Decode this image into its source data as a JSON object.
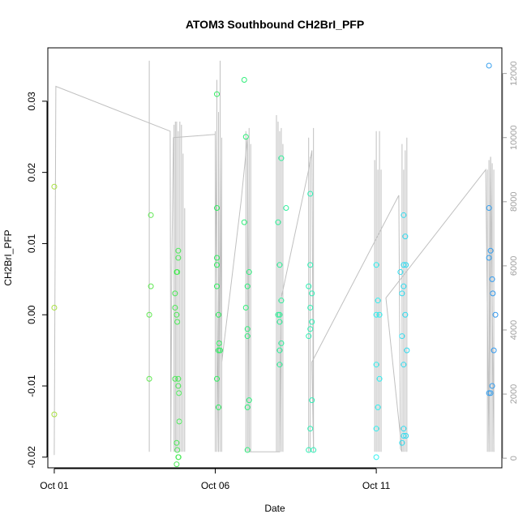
{
  "chart_data": {
    "type": "scatter",
    "title": "ATOM3 Southbound CH2BrI_PFP",
    "xlabel": "Date",
    "ylabel": "CH2BrI_PFP",
    "x_ticks": [
      {
        "label": "Oct 01",
        "day": 1
      },
      {
        "label": "Oct 06",
        "day": 6
      },
      {
        "label": "Oct 11",
        "day": 11
      }
    ],
    "xlim_days": [
      0.8,
      14.9
    ],
    "ylim": [
      -0.0215,
      0.0375
    ],
    "y_ticks": [
      -0.02,
      -0.01,
      0.0,
      0.01,
      0.02,
      0.03
    ],
    "y_tick_labels": [
      "-0.02",
      "-0.01",
      "0.00",
      "0.01",
      "0.02",
      "0.03"
    ],
    "y2_ticks": [
      0,
      2000,
      4000,
      6000,
      8000,
      10000,
      12000
    ],
    "y2_tick_labels": [
      "0",
      "2000",
      "4000",
      "6000",
      "8000",
      "10000",
      "12000"
    ],
    "y2lim": [
      -300,
      12800
    ],
    "colors": {
      "start": "#a8e040",
      "mid": "#30ee60",
      "cyan": "#30f0f0",
      "end": "#3399ee",
      "altitude_line": "#c0c0c0"
    },
    "points": [
      [
        1.0,
        0.018
      ],
      [
        1.0,
        0.001
      ],
      [
        1.0,
        -0.014
      ],
      [
        4.0,
        0.014
      ],
      [
        4.0,
        0.004
      ],
      [
        3.95,
        0.0
      ],
      [
        3.95,
        -0.009
      ],
      [
        4.75,
        0.003
      ],
      [
        4.75,
        0.001
      ],
      [
        4.8,
        0.006
      ],
      [
        4.82,
        0.006
      ],
      [
        4.85,
        0.009
      ],
      [
        4.85,
        0.008
      ],
      [
        4.8,
        0.0
      ],
      [
        4.82,
        -0.001
      ],
      [
        4.75,
        -0.009
      ],
      [
        4.85,
        -0.009
      ],
      [
        4.85,
        -0.01
      ],
      [
        4.87,
        -0.011
      ],
      [
        4.88,
        -0.015
      ],
      [
        4.8,
        -0.018
      ],
      [
        4.82,
        -0.019
      ],
      [
        4.85,
        -0.02
      ],
      [
        4.86,
        -0.02
      ],
      [
        4.8,
        -0.021
      ],
      [
        6.05,
        0.031
      ],
      [
        6.05,
        0.015
      ],
      [
        6.05,
        0.008
      ],
      [
        6.05,
        0.007
      ],
      [
        6.05,
        0.004
      ],
      [
        6.1,
        0.0
      ],
      [
        6.12,
        -0.004
      ],
      [
        6.1,
        -0.005
      ],
      [
        6.15,
        -0.005
      ],
      [
        6.05,
        -0.009
      ],
      [
        6.1,
        -0.013
      ],
      [
        6.9,
        0.033
      ],
      [
        6.95,
        0.025
      ],
      [
        6.9,
        0.013
      ],
      [
        7.05,
        0.006
      ],
      [
        7.0,
        0.004
      ],
      [
        6.95,
        0.001
      ],
      [
        7.0,
        -0.002
      ],
      [
        7.0,
        -0.003
      ],
      [
        7.05,
        -0.012
      ],
      [
        7.0,
        -0.013
      ],
      [
        7.0,
        -0.019
      ],
      [
        8.05,
        0.022
      ],
      [
        8.2,
        0.015
      ],
      [
        7.95,
        0.013
      ],
      [
        8.0,
        0.007
      ],
      [
        8.05,
        0.002
      ],
      [
        8.0,
        0.0
      ],
      [
        7.95,
        0.0
      ],
      [
        8.0,
        -0.001
      ],
      [
        8.05,
        -0.004
      ],
      [
        8.0,
        -0.005
      ],
      [
        8.0,
        -0.007
      ],
      [
        8.95,
        0.017
      ],
      [
        8.95,
        0.007
      ],
      [
        8.9,
        0.004
      ],
      [
        9.0,
        0.003
      ],
      [
        8.95,
        0.001
      ],
      [
        9.0,
        -0.001
      ],
      [
        8.95,
        -0.002
      ],
      [
        8.9,
        -0.003
      ],
      [
        9.0,
        -0.012
      ],
      [
        8.95,
        -0.016
      ],
      [
        8.9,
        -0.019
      ],
      [
        9.05,
        -0.019
      ],
      [
        11.0,
        0.007
      ],
      [
        11.05,
        0.002
      ],
      [
        11.0,
        0.0
      ],
      [
        11.1,
        0.0
      ],
      [
        11.0,
        -0.007
      ],
      [
        11.1,
        -0.009
      ],
      [
        11.05,
        -0.013
      ],
      [
        11.0,
        -0.016
      ],
      [
        11.0,
        -0.02
      ],
      [
        11.85,
        0.014
      ],
      [
        11.9,
        0.011
      ],
      [
        11.85,
        0.007
      ],
      [
        11.92,
        0.007
      ],
      [
        11.75,
        0.006
      ],
      [
        11.85,
        0.004
      ],
      [
        11.8,
        0.003
      ],
      [
        11.9,
        0.0
      ],
      [
        11.8,
        -0.003
      ],
      [
        11.95,
        -0.005
      ],
      [
        11.85,
        -0.007
      ],
      [
        11.85,
        -0.016
      ],
      [
        11.85,
        -0.017
      ],
      [
        11.92,
        -0.017
      ],
      [
        11.8,
        -0.018
      ],
      [
        14.5,
        0.035
      ],
      [
        14.5,
        0.015
      ],
      [
        14.55,
        0.009
      ],
      [
        14.5,
        0.008
      ],
      [
        14.6,
        0.005
      ],
      [
        14.62,
        0.003
      ],
      [
        14.7,
        0.0
      ],
      [
        14.65,
        -0.005
      ],
      [
        14.6,
        -0.01
      ],
      [
        14.55,
        -0.011
      ],
      [
        14.5,
        -0.011
      ]
    ],
    "altitude_path": [
      [
        1.0,
        100
      ],
      [
        1.05,
        11600
      ],
      [
        4.6,
        10200
      ],
      [
        4.62,
        200
      ],
      [
        4.65,
        6000
      ],
      [
        4.7,
        10000
      ],
      [
        6.0,
        10100
      ],
      [
        6.1,
        200
      ],
      [
        6.15,
        9400
      ],
      [
        6.2,
        3000
      ],
      [
        6.8,
        8000
      ],
      [
        7.0,
        10000
      ],
      [
        7.05,
        200
      ],
      [
        8.0,
        200
      ],
      [
        8.05,
        5000
      ],
      [
        8.9,
        9000
      ],
      [
        9.0,
        9600
      ],
      [
        9.05,
        200
      ],
      [
        9.0,
        3000
      ],
      [
        11.7,
        8200
      ],
      [
        11.75,
        300
      ],
      [
        11.8,
        200
      ],
      [
        11.3,
        5000
      ],
      [
        14.4,
        9000
      ],
      [
        14.5,
        200
      ],
      [
        14.55,
        9400
      ],
      [
        14.65,
        200
      ]
    ],
    "spikes": [
      [
        3.95,
        200,
        12400
      ],
      [
        4.72,
        200,
        10400
      ],
      [
        4.76,
        200,
        10500
      ],
      [
        4.8,
        200,
        10500
      ],
      [
        4.85,
        200,
        10200
      ],
      [
        4.9,
        200,
        10500
      ],
      [
        4.95,
        200,
        10400
      ],
      [
        5.0,
        200,
        9500
      ],
      [
        5.05,
        200,
        7800
      ],
      [
        6.0,
        200,
        10200
      ],
      [
        6.05,
        200,
        11800
      ],
      [
        6.1,
        200,
        10800
      ],
      [
        6.15,
        200,
        12400
      ],
      [
        6.2,
        200,
        10000
      ],
      [
        6.95,
        200,
        10200
      ],
      [
        7.0,
        200,
        9800
      ],
      [
        7.05,
        200,
        10300
      ],
      [
        7.1,
        200,
        9800
      ],
      [
        7.9,
        200,
        10700
      ],
      [
        7.95,
        200,
        10500
      ],
      [
        8.0,
        200,
        10200
      ],
      [
        8.05,
        200,
        10300
      ],
      [
        8.1,
        200,
        9800
      ],
      [
        8.9,
        200,
        10000
      ],
      [
        8.95,
        200,
        9400
      ],
      [
        9.05,
        200,
        10300
      ],
      [
        10.95,
        200,
        9300
      ],
      [
        11.0,
        200,
        10200
      ],
      [
        11.05,
        200,
        9000
      ],
      [
        11.1,
        200,
        10200
      ],
      [
        11.15,
        200,
        9000
      ],
      [
        11.8,
        200,
        9800
      ],
      [
        11.85,
        200,
        9000
      ],
      [
        11.9,
        200,
        9600
      ],
      [
        11.95,
        200,
        10000
      ],
      [
        14.45,
        200,
        9000
      ],
      [
        14.5,
        200,
        9300
      ],
      [
        14.55,
        200,
        9400
      ],
      [
        14.6,
        200,
        9200
      ],
      [
        14.65,
        200,
        9000
      ]
    ]
  }
}
